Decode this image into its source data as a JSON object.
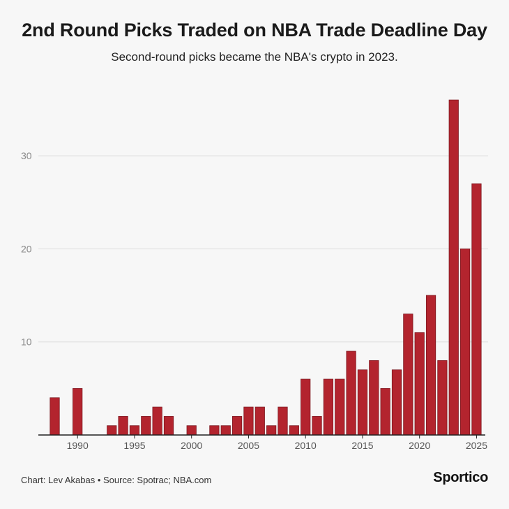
{
  "chart_data": {
    "type": "bar",
    "title": "2nd Round Picks Traded on NBA Trade Deadline Day",
    "subtitle": "Second-round picks became the NBA's crypto in 2023.",
    "xlabel": "",
    "ylabel": "",
    "ylim": [
      0,
      37
    ],
    "yticks": [
      10,
      20,
      30
    ],
    "xticks": [
      1990,
      1995,
      2000,
      2005,
      2010,
      2015,
      2020,
      2025
    ],
    "grid": true,
    "bar_color": "#b3242e",
    "x": [
      1988,
      1989,
      1990,
      1991,
      1992,
      1993,
      1994,
      1995,
      1996,
      1997,
      1998,
      1999,
      2000,
      2001,
      2002,
      2003,
      2004,
      2005,
      2006,
      2007,
      2008,
      2009,
      2010,
      2011,
      2012,
      2013,
      2014,
      2015,
      2016,
      2017,
      2018,
      2019,
      2020,
      2021,
      2022,
      2023,
      2024,
      2025
    ],
    "values": [
      4,
      0,
      5,
      0,
      0,
      1,
      2,
      1,
      2,
      3,
      2,
      0,
      1,
      0,
      1,
      1,
      2,
      3,
      3,
      1,
      3,
      1,
      6,
      2,
      6,
      6,
      9,
      7,
      8,
      5,
      7,
      13,
      11,
      15,
      8,
      36,
      20,
      27
    ]
  },
  "footer": {
    "source": "Chart: Lev Akabas • Source: Spotrac; NBA.com",
    "brand": "Sportico"
  }
}
